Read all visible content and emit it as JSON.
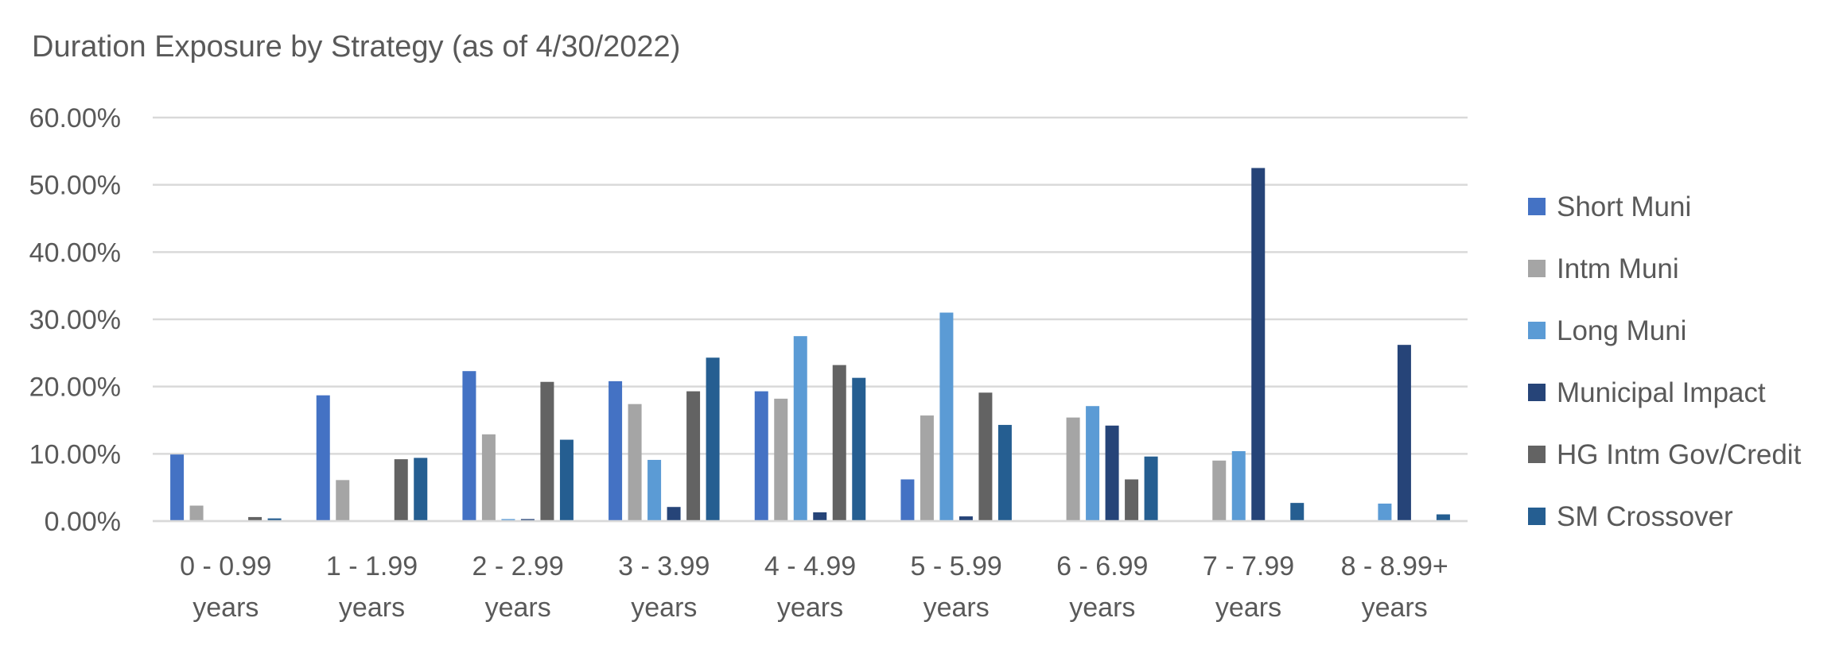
{
  "chart_data": {
    "type": "bar",
    "title": "Duration Exposure by Strategy (as of 4/30/2022)",
    "xlabel": "",
    "ylabel": "",
    "ylim": [
      0,
      0.6
    ],
    "yticks": [
      0,
      0.1,
      0.2,
      0.3,
      0.4,
      0.5,
      0.6
    ],
    "ytick_labels": [
      "0.00%",
      "10.00%",
      "20.00%",
      "30.00%",
      "40.00%",
      "50.00%",
      "60.00%"
    ],
    "grid": true,
    "legend_position": "right",
    "categories": [
      [
        "0 - 0.99",
        "years"
      ],
      [
        "1 - 1.99",
        "years"
      ],
      [
        "2 - 2.99",
        "years"
      ],
      [
        "3 - 3.99",
        "years"
      ],
      [
        "4 - 4.99",
        "years"
      ],
      [
        "5 - 5.99",
        "years"
      ],
      [
        "6 - 6.99",
        "years"
      ],
      [
        "7 - 7.99",
        "years"
      ],
      [
        "8 - 8.99+",
        "years"
      ]
    ],
    "series": [
      {
        "name": "Short Muni",
        "color": "#4472C4",
        "values": [
          0.099,
          0.187,
          0.223,
          0.208,
          0.193,
          0.062,
          0.0,
          0.0,
          0.0
        ]
      },
      {
        "name": "Intm Muni",
        "color": "#A5A5A5",
        "values": [
          0.023,
          0.061,
          0.129,
          0.174,
          0.182,
          0.157,
          0.154,
          0.09,
          0.0
        ]
      },
      {
        "name": "Long Muni",
        "color": "#5B9BD5",
        "values": [
          0.0,
          0.0,
          0.003,
          0.091,
          0.275,
          0.31,
          0.171,
          0.104,
          0.026
        ]
      },
      {
        "name": "Municipal Impact",
        "color": "#264478",
        "values": [
          0.0,
          0.0,
          0.003,
          0.021,
          0.013,
          0.007,
          0.142,
          0.525,
          0.262
        ]
      },
      {
        "name": "HG Intm Gov/Credit",
        "color": "#636363",
        "values": [
          0.006,
          0.092,
          0.207,
          0.193,
          0.232,
          0.191,
          0.062,
          0.0,
          0.0
        ]
      },
      {
        "name": "SM Crossover",
        "color": "#255E91",
        "values": [
          0.004,
          0.094,
          0.121,
          0.243,
          0.213,
          0.143,
          0.096,
          0.027,
          0.01
        ]
      }
    ]
  }
}
